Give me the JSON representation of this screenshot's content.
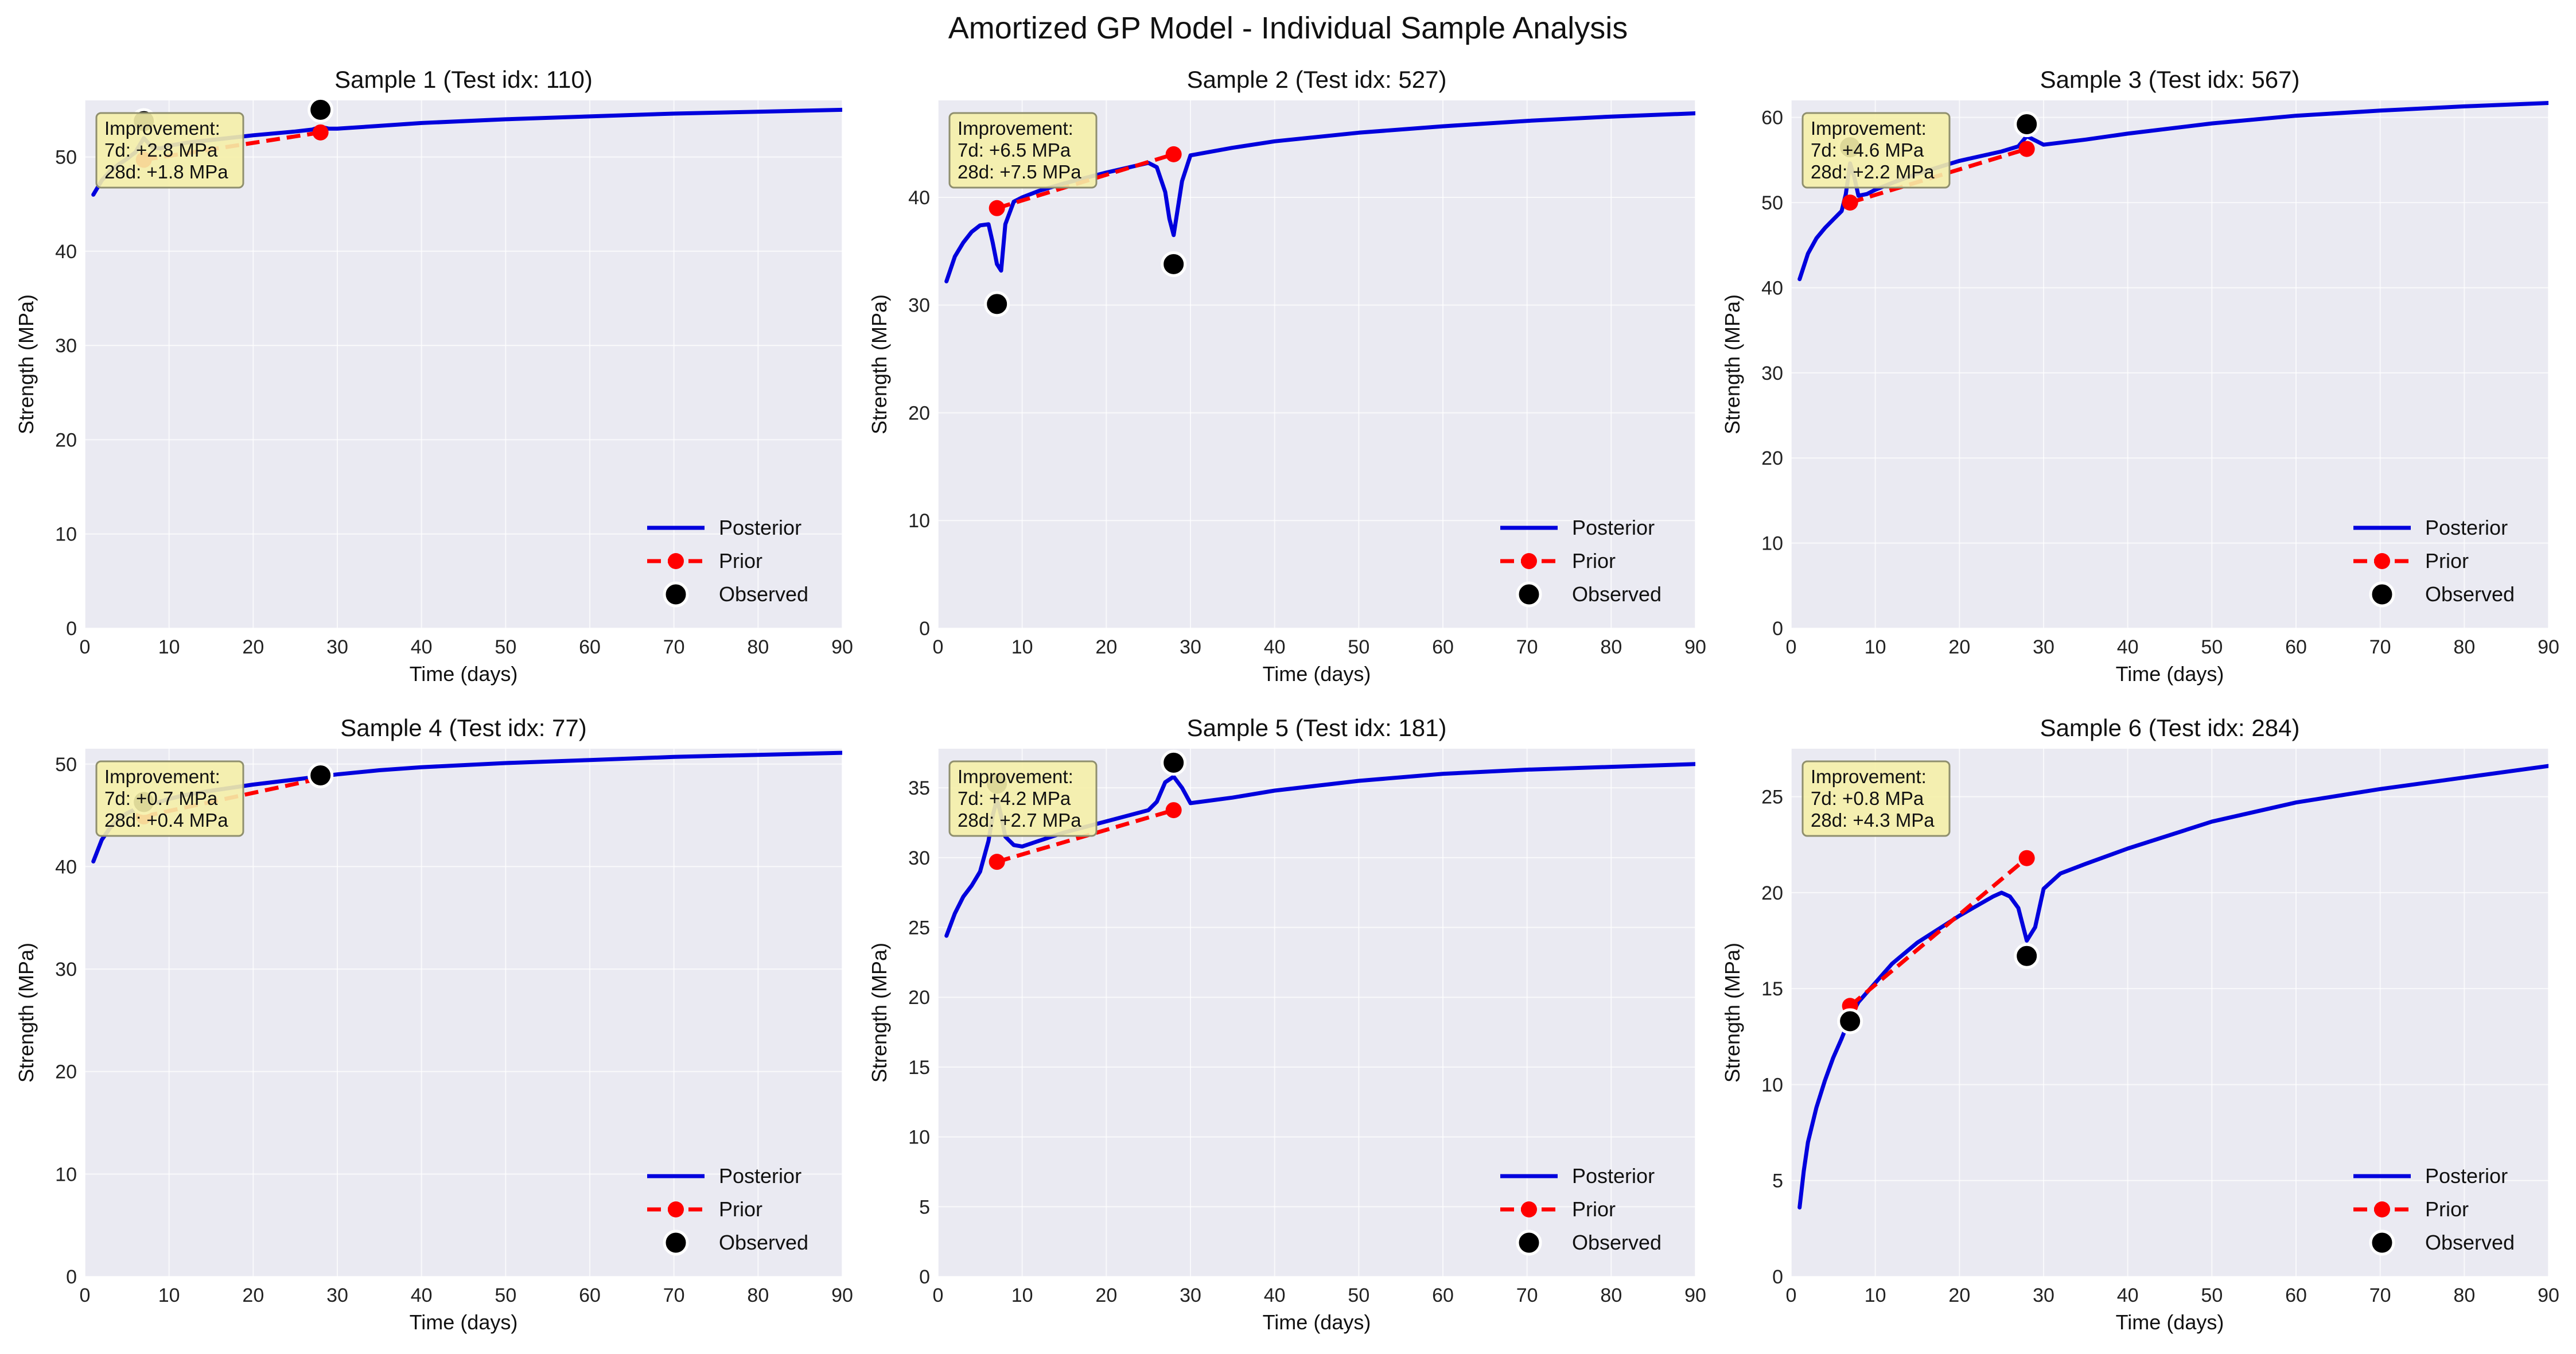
{
  "figure": {
    "title": "Amortized GP Model - Individual Sample Analysis",
    "colors": {
      "posterior": "#0000dd",
      "prior": "#ff0000",
      "observed": "#000000",
      "panel_bg": "#eaeaf2",
      "annotation_bg": "#f5f0a8",
      "annotation_border": "#8f8f6e"
    }
  },
  "chart_data": [
    {
      "type": "line",
      "title": "Sample 1 (Test idx: 110)",
      "xlabel": "Time (days)",
      "ylabel": "Strength (MPa)",
      "xlim": [
        0,
        90
      ],
      "ylim": [
        0,
        56
      ],
      "xticks": [
        0,
        10,
        20,
        30,
        40,
        50,
        60,
        70,
        80,
        90
      ],
      "yticks": [
        0,
        10,
        20,
        30,
        40,
        50
      ],
      "grid": true,
      "legend_position": "lower right",
      "legend": [
        "Posterior",
        "Prior",
        "Observed"
      ],
      "annotation": [
        "Improvement:",
        "7d: +2.8 MPa",
        "28d: +1.8 MPa"
      ],
      "series": [
        {
          "name": "Posterior",
          "x": [
            1,
            2,
            3,
            4,
            5,
            6,
            7,
            8,
            9,
            10,
            12,
            15,
            20,
            25,
            27,
            28,
            29,
            30,
            35,
            40,
            50,
            60,
            70,
            80,
            90
          ],
          "y": [
            46.0,
            47.5,
            48.5,
            49.2,
            49.8,
            50.5,
            52.0,
            51.0,
            50.9,
            51.2,
            51.5,
            51.8,
            52.3,
            52.7,
            52.9,
            53.2,
            53.0,
            53.0,
            53.3,
            53.6,
            54.0,
            54.3,
            54.6,
            54.8,
            55.0
          ]
        },
        {
          "name": "Prior",
          "x": [
            7,
            28
          ],
          "y": [
            49.7,
            52.6
          ]
        },
        {
          "name": "Observed",
          "x": [
            7,
            28
          ],
          "y": [
            53.8,
            55.0
          ]
        }
      ]
    },
    {
      "type": "line",
      "title": "Sample 2 (Test idx: 527)",
      "xlabel": "Time (days)",
      "ylabel": "Strength (MPa)",
      "xlim": [
        0,
        90
      ],
      "ylim": [
        0,
        49
      ],
      "xticks": [
        0,
        10,
        20,
        30,
        40,
        50,
        60,
        70,
        80,
        90
      ],
      "yticks": [
        0,
        10,
        20,
        30,
        40
      ],
      "grid": true,
      "legend_position": "lower right",
      "legend": [
        "Posterior",
        "Prior",
        "Observed"
      ],
      "annotation": [
        "Improvement:",
        "7d: +6.5 MPa",
        "28d: +7.5 MPa"
      ],
      "series": [
        {
          "name": "Posterior",
          "x": [
            1,
            2,
            3,
            4,
            5,
            6,
            6.5,
            7,
            7.5,
            8,
            9,
            10,
            12,
            15,
            20,
            25,
            26,
            27,
            27.5,
            28,
            28.5,
            29,
            30,
            35,
            40,
            50,
            60,
            70,
            80,
            90
          ],
          "y": [
            32.2,
            34.5,
            35.8,
            36.8,
            37.4,
            37.5,
            35.8,
            33.8,
            33.2,
            37.5,
            39.6,
            40.0,
            40.6,
            41.3,
            42.3,
            43.2,
            42.8,
            40.5,
            38.0,
            36.5,
            39.0,
            41.5,
            43.9,
            44.6,
            45.2,
            46.0,
            46.6,
            47.1,
            47.5,
            47.8
          ]
        },
        {
          "name": "Prior",
          "x": [
            7,
            28
          ],
          "y": [
            39.0,
            44.0
          ]
        },
        {
          "name": "Observed",
          "x": [
            7,
            28
          ],
          "y": [
            30.1,
            33.8
          ]
        }
      ]
    },
    {
      "type": "line",
      "title": "Sample 3 (Test idx: 567)",
      "xlabel": "Time (days)",
      "ylabel": "Strength (MPa)",
      "xlim": [
        0,
        90
      ],
      "ylim": [
        0,
        62
      ],
      "xticks": [
        0,
        10,
        20,
        30,
        40,
        50,
        60,
        70,
        80,
        90
      ],
      "yticks": [
        0,
        10,
        20,
        30,
        40,
        50,
        60
      ],
      "grid": true,
      "legend_position": "lower right",
      "legend": [
        "Posterior",
        "Prior",
        "Observed"
      ],
      "annotation": [
        "Improvement:",
        "7d: +4.6 MPa",
        "28d: +2.2 MPa"
      ],
      "series": [
        {
          "name": "Posterior",
          "x": [
            1,
            2,
            3,
            4,
            5,
            6,
            6.5,
            7,
            7.5,
            8,
            9,
            10,
            12,
            15,
            20,
            25,
            27,
            28,
            29,
            30,
            35,
            40,
            50,
            60,
            70,
            80,
            90
          ],
          "y": [
            41.0,
            44.0,
            45.8,
            47.0,
            48.0,
            49.0,
            51.0,
            54.6,
            53.0,
            50.8,
            51.0,
            51.5,
            52.3,
            53.4,
            54.9,
            56.0,
            56.6,
            57.8,
            57.3,
            56.8,
            57.4,
            58.1,
            59.3,
            60.2,
            60.8,
            61.3,
            61.7
          ]
        },
        {
          "name": "Prior",
          "x": [
            7,
            28
          ],
          "y": [
            50.0,
            56.3
          ]
        },
        {
          "name": "Observed",
          "x": [
            7,
            28
          ],
          "y": [
            56.5,
            59.2
          ]
        }
      ]
    },
    {
      "type": "line",
      "title": "Sample 4 (Test idx: 77)",
      "xlabel": "Time (days)",
      "ylabel": "Strength (MPa)",
      "xlim": [
        0,
        90
      ],
      "ylim": [
        0,
        51.5
      ],
      "xticks": [
        0,
        10,
        20,
        30,
        40,
        50,
        60,
        70,
        80,
        90
      ],
      "yticks": [
        0,
        10,
        20,
        30,
        40,
        50
      ],
      "grid": true,
      "legend_position": "lower right",
      "legend": [
        "Posterior",
        "Prior",
        "Observed"
      ],
      "annotation": [
        "Improvement:",
        "7d: +0.7 MPa",
        "28d: +0.4 MPa"
      ],
      "series": [
        {
          "name": "Posterior",
          "x": [
            1,
            2,
            3,
            4,
            5,
            6,
            7,
            8,
            10,
            12,
            15,
            20,
            25,
            28,
            30,
            35,
            40,
            50,
            60,
            70,
            80,
            90
          ],
          "y": [
            40.5,
            42.6,
            43.8,
            44.6,
            45.2,
            45.6,
            45.9,
            46.1,
            46.6,
            47.0,
            47.4,
            48.0,
            48.5,
            48.8,
            49.0,
            49.4,
            49.7,
            50.1,
            50.4,
            50.7,
            50.9,
            51.1
          ]
        },
        {
          "name": "Prior",
          "x": [
            7,
            28
          ],
          "y": [
            44.9,
            48.6
          ]
        },
        {
          "name": "Observed",
          "x": [
            7,
            28
          ],
          "y": [
            46.3,
            48.9
          ]
        }
      ]
    },
    {
      "type": "line",
      "title": "Sample 5 (Test idx: 181)",
      "xlabel": "Time (days)",
      "ylabel": "Strength (MPa)",
      "xlim": [
        0,
        90
      ],
      "ylim": [
        0,
        37.8
      ],
      "xticks": [
        0,
        10,
        20,
        30,
        40,
        50,
        60,
        70,
        80,
        90
      ],
      "yticks": [
        0,
        5,
        10,
        15,
        20,
        25,
        30,
        35
      ],
      "grid": true,
      "legend_position": "lower right",
      "legend": [
        "Posterior",
        "Prior",
        "Observed"
      ],
      "annotation": [
        "Improvement:",
        "7d: +4.2 MPa",
        "28d: +2.7 MPa"
      ],
      "series": [
        {
          "name": "Posterior",
          "x": [
            1,
            2,
            3,
            4,
            5,
            6,
            6.5,
            7,
            7.5,
            8,
            9,
            10,
            12,
            15,
            20,
            25,
            26,
            27,
            28,
            29,
            30,
            35,
            40,
            50,
            60,
            70,
            80,
            90
          ],
          "y": [
            24.4,
            26.0,
            27.2,
            28.0,
            29.0,
            31.2,
            33.0,
            34.2,
            33.0,
            31.5,
            30.9,
            30.8,
            31.2,
            31.8,
            32.6,
            33.4,
            34.0,
            35.4,
            35.8,
            35.0,
            33.9,
            34.3,
            34.8,
            35.5,
            36.0,
            36.3,
            36.5,
            36.7
          ]
        },
        {
          "name": "Prior",
          "x": [
            7,
            28
          ],
          "y": [
            29.7,
            33.4
          ]
        },
        {
          "name": "Observed",
          "x": [
            7,
            28
          ],
          "y": [
            35.3,
            36.8
          ]
        }
      ]
    },
    {
      "type": "line",
      "title": "Sample 6 (Test idx: 284)",
      "xlabel": "Time (days)",
      "ylabel": "Strength (MPa)",
      "xlim": [
        0,
        90
      ],
      "ylim": [
        0,
        27.5
      ],
      "xticks": [
        0,
        10,
        20,
        30,
        40,
        50,
        60,
        70,
        80,
        90
      ],
      "yticks": [
        0,
        5,
        10,
        15,
        20,
        25
      ],
      "grid": true,
      "legend_position": "lower right",
      "legend": [
        "Posterior",
        "Prior",
        "Observed"
      ],
      "annotation": [
        "Improvement:",
        "7d: +0.8 MPa",
        "28d: +4.3 MPa"
      ],
      "series": [
        {
          "name": "Posterior",
          "x": [
            1,
            1.5,
            2,
            3,
            4,
            5,
            6,
            7,
            8,
            10,
            12,
            15,
            20,
            24,
            25,
            26,
            27,
            28,
            29,
            30,
            32,
            35,
            40,
            50,
            60,
            70,
            80,
            90
          ],
          "y": [
            3.6,
            5.5,
            7.0,
            8.8,
            10.2,
            11.4,
            12.4,
            13.5,
            14.3,
            15.3,
            16.3,
            17.4,
            18.8,
            19.8,
            20.0,
            19.8,
            19.2,
            17.5,
            18.2,
            20.2,
            21.0,
            21.5,
            22.3,
            23.7,
            24.7,
            25.4,
            26.0,
            26.6
          ]
        },
        {
          "name": "Prior",
          "x": [
            7,
            28
          ],
          "y": [
            14.1,
            21.8
          ]
        },
        {
          "name": "Observed",
          "x": [
            7,
            28
          ],
          "y": [
            13.3,
            16.7
          ]
        }
      ]
    }
  ]
}
